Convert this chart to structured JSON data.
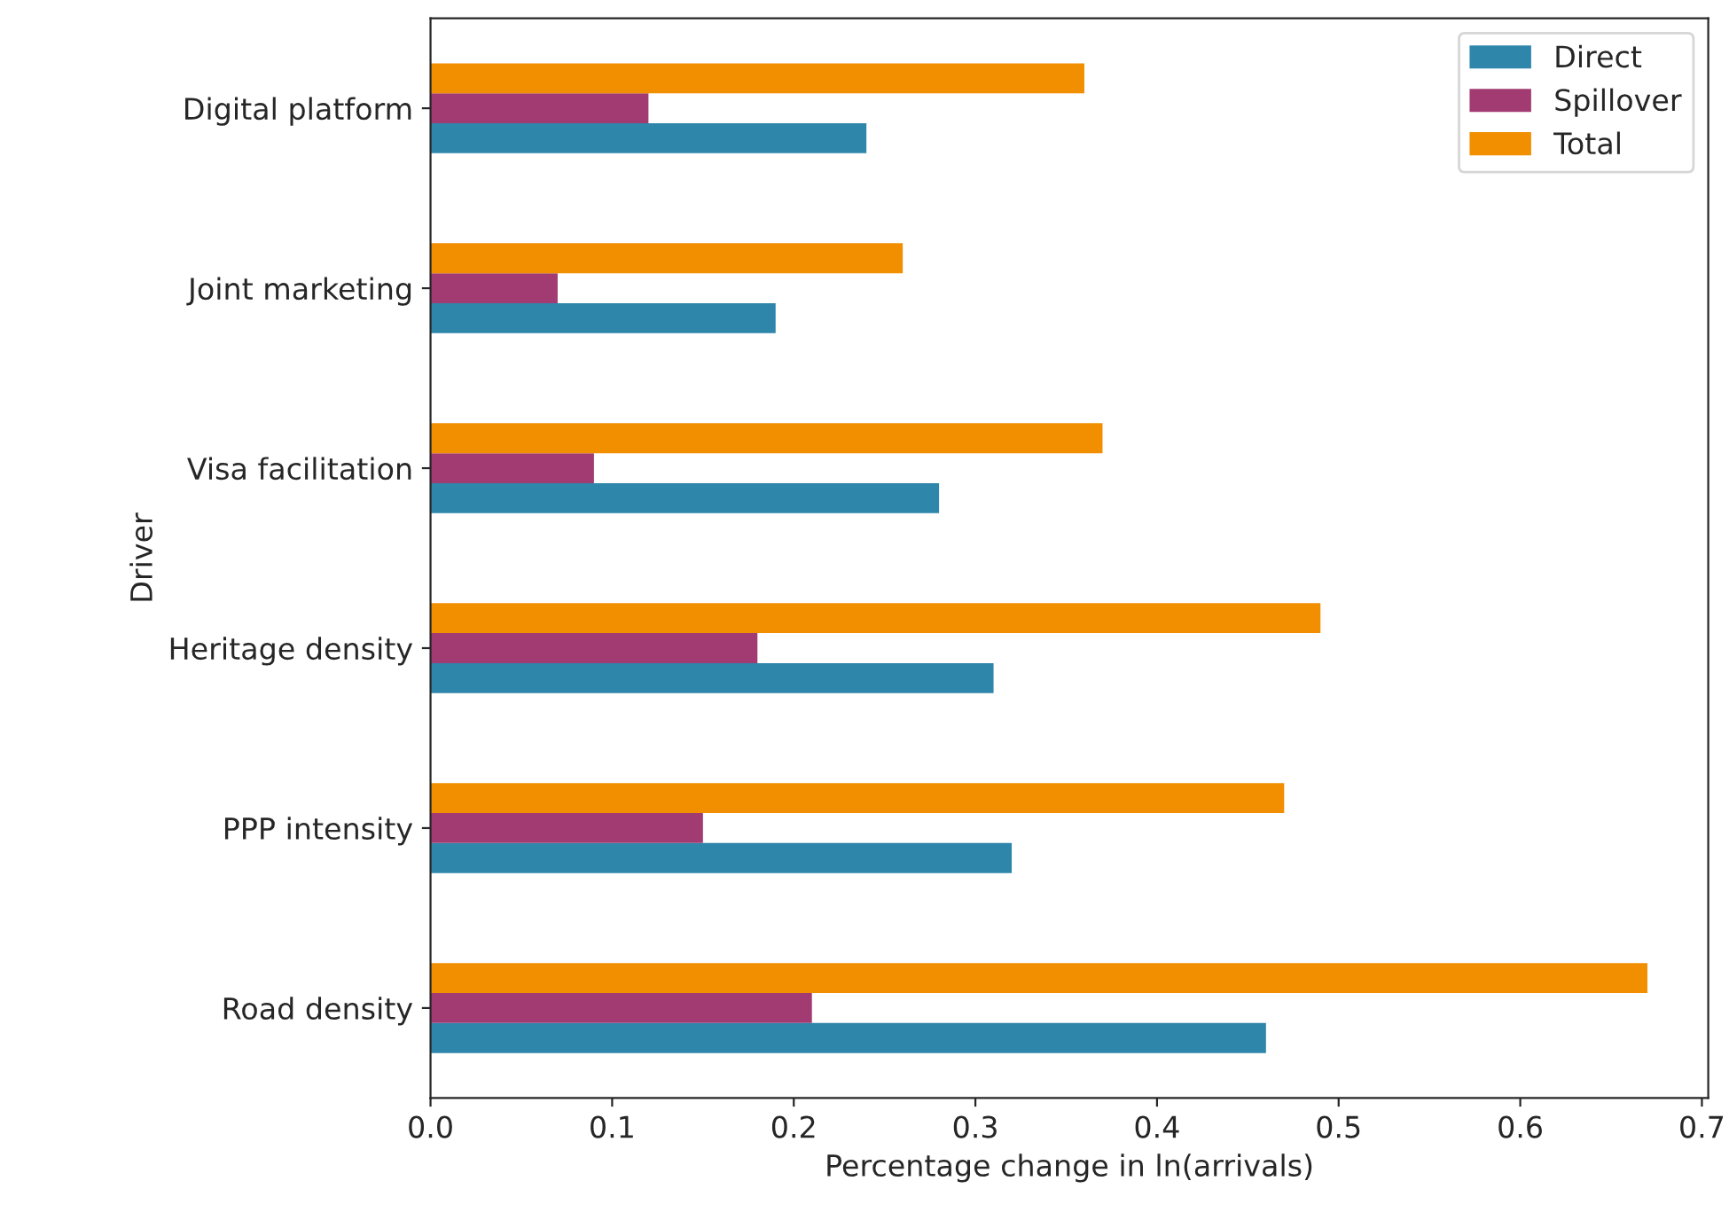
{
  "chart_data": {
    "type": "bar",
    "orientation": "horizontal",
    "xlabel": "Percentage change in ln(arrivals)",
    "ylabel": "Driver",
    "categories": [
      "Digital platform",
      "Joint marketing",
      "Visa facilitation",
      "Heritage density",
      "PPP intensity",
      "Road density"
    ],
    "series": [
      {
        "name": "Direct",
        "color": "#2e86ab",
        "values": [
          0.24,
          0.19,
          0.28,
          0.31,
          0.32,
          0.46
        ]
      },
      {
        "name": "Spillover",
        "color": "#a23b72",
        "values": [
          0.12,
          0.07,
          0.09,
          0.18,
          0.15,
          0.21
        ]
      },
      {
        "name": "Total",
        "color": "#f18f01",
        "values": [
          0.36,
          0.26,
          0.37,
          0.49,
          0.47,
          0.67
        ]
      }
    ],
    "xlim": [
      0,
      0.7035
    ],
    "xticks": [
      {
        "value": 0,
        "label": "0.0"
      },
      0.1,
      0.2,
      0.3,
      0.4,
      0.5,
      0.6,
      0.7
    ],
    "legend": "top right",
    "grid": false
  }
}
